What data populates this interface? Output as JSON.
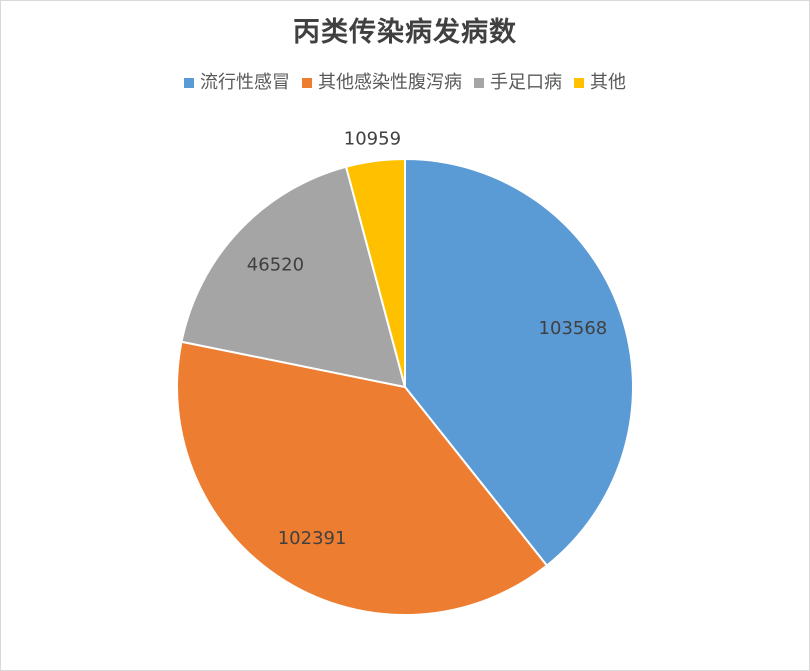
{
  "chart_data": {
    "type": "pie",
    "title": "丙类传染病发病数",
    "categories": [
      "流行性感冒",
      "其他感染性腹泻病",
      "手足口病",
      "其他"
    ],
    "values": [
      103568,
      102391,
      46520,
      10959
    ],
    "colors": [
      "#5b9bd5",
      "#ed7d31",
      "#a5a5a5",
      "#ffc000"
    ],
    "legend_position": "top",
    "start_angle": "12 o'clock",
    "direction": "clockwise",
    "slice_border_color": "#ffffff"
  }
}
